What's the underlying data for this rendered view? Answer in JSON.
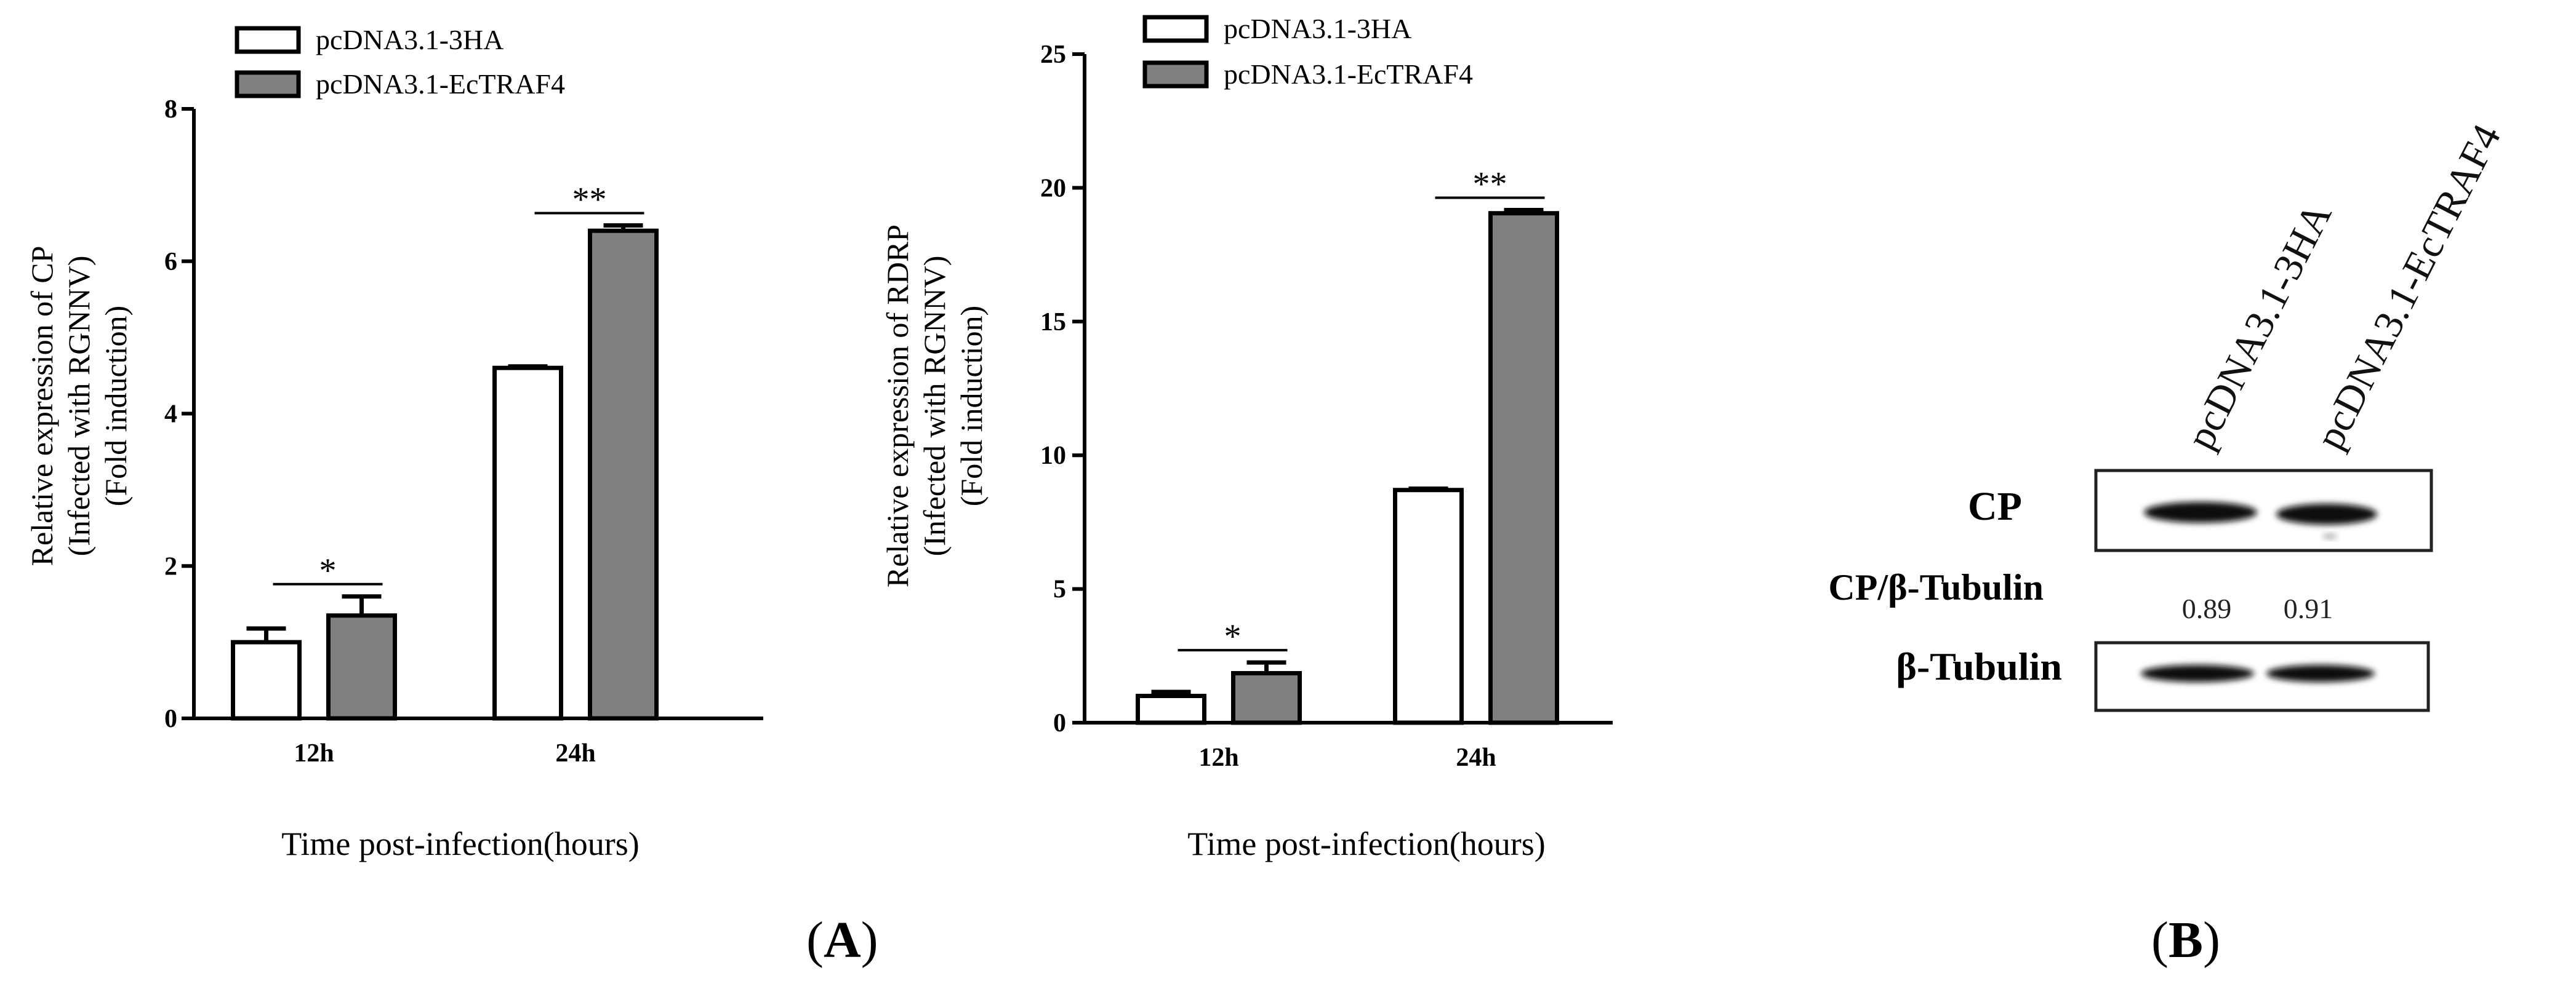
{
  "colors": {
    "series_a": "#ffffff",
    "series_b": "#808080",
    "stroke": "#000000",
    "band": "#0d0d0d"
  },
  "chart_data": [
    {
      "type": "bar",
      "title": "",
      "ylabel_lines": [
        "Relative expression of  CP",
        "(Infected with RGNNV)",
        "(Fold induction)"
      ],
      "xlabel": "Time post-infection(hours)",
      "categories": [
        "12h",
        "24h"
      ],
      "ylim": [
        0,
        8
      ],
      "yticks": [
        0,
        2,
        4,
        6,
        8
      ],
      "legend_position": "top-left",
      "series": [
        {
          "name": "pcDNA3.1-3HA",
          "values": [
            1.0,
            4.6
          ],
          "errors": [
            0.18,
            0.02
          ]
        },
        {
          "name": "pcDNA3.1-EcTRAF4",
          "values": [
            1.35,
            6.4
          ],
          "errors": [
            0.25,
            0.07
          ]
        }
      ],
      "significance": [
        "*",
        "**"
      ]
    },
    {
      "type": "bar",
      "title": "",
      "ylabel_lines": [
        "Relative expression of  RDRP",
        "(Infected with RGNNV)",
        "(Fold induction)"
      ],
      "xlabel": "Time post-infection(hours)",
      "categories": [
        "12h",
        "24h"
      ],
      "ylim": [
        0,
        25
      ],
      "yticks": [
        0,
        5,
        10,
        15,
        20,
        25
      ],
      "legend_position": "top-left",
      "series": [
        {
          "name": "pcDNA3.1-3HA",
          "values": [
            1.0,
            8.7
          ],
          "errors": [
            0.15,
            0.05
          ]
        },
        {
          "name": "pcDNA3.1-EcTRAF4",
          "values": [
            1.85,
            19.05
          ],
          "errors": [
            0.4,
            0.12
          ]
        }
      ],
      "significance": [
        "*",
        "**"
      ]
    }
  ],
  "blot": {
    "lanes": [
      "pcDNA3.1-3HA",
      "pcDNA3.1-EcTRAF4"
    ],
    "rows": {
      "cp": "CP",
      "ratio": "CP/β-Tubulin",
      "tubulin": "β-Tubulin"
    },
    "ratios": [
      "0.89",
      "0.91"
    ]
  },
  "panels": {
    "a_prefix": "(",
    "a": "A",
    "a_suffix": ")",
    "b_prefix": "(",
    "b": "B",
    "b_suffix": ")"
  }
}
